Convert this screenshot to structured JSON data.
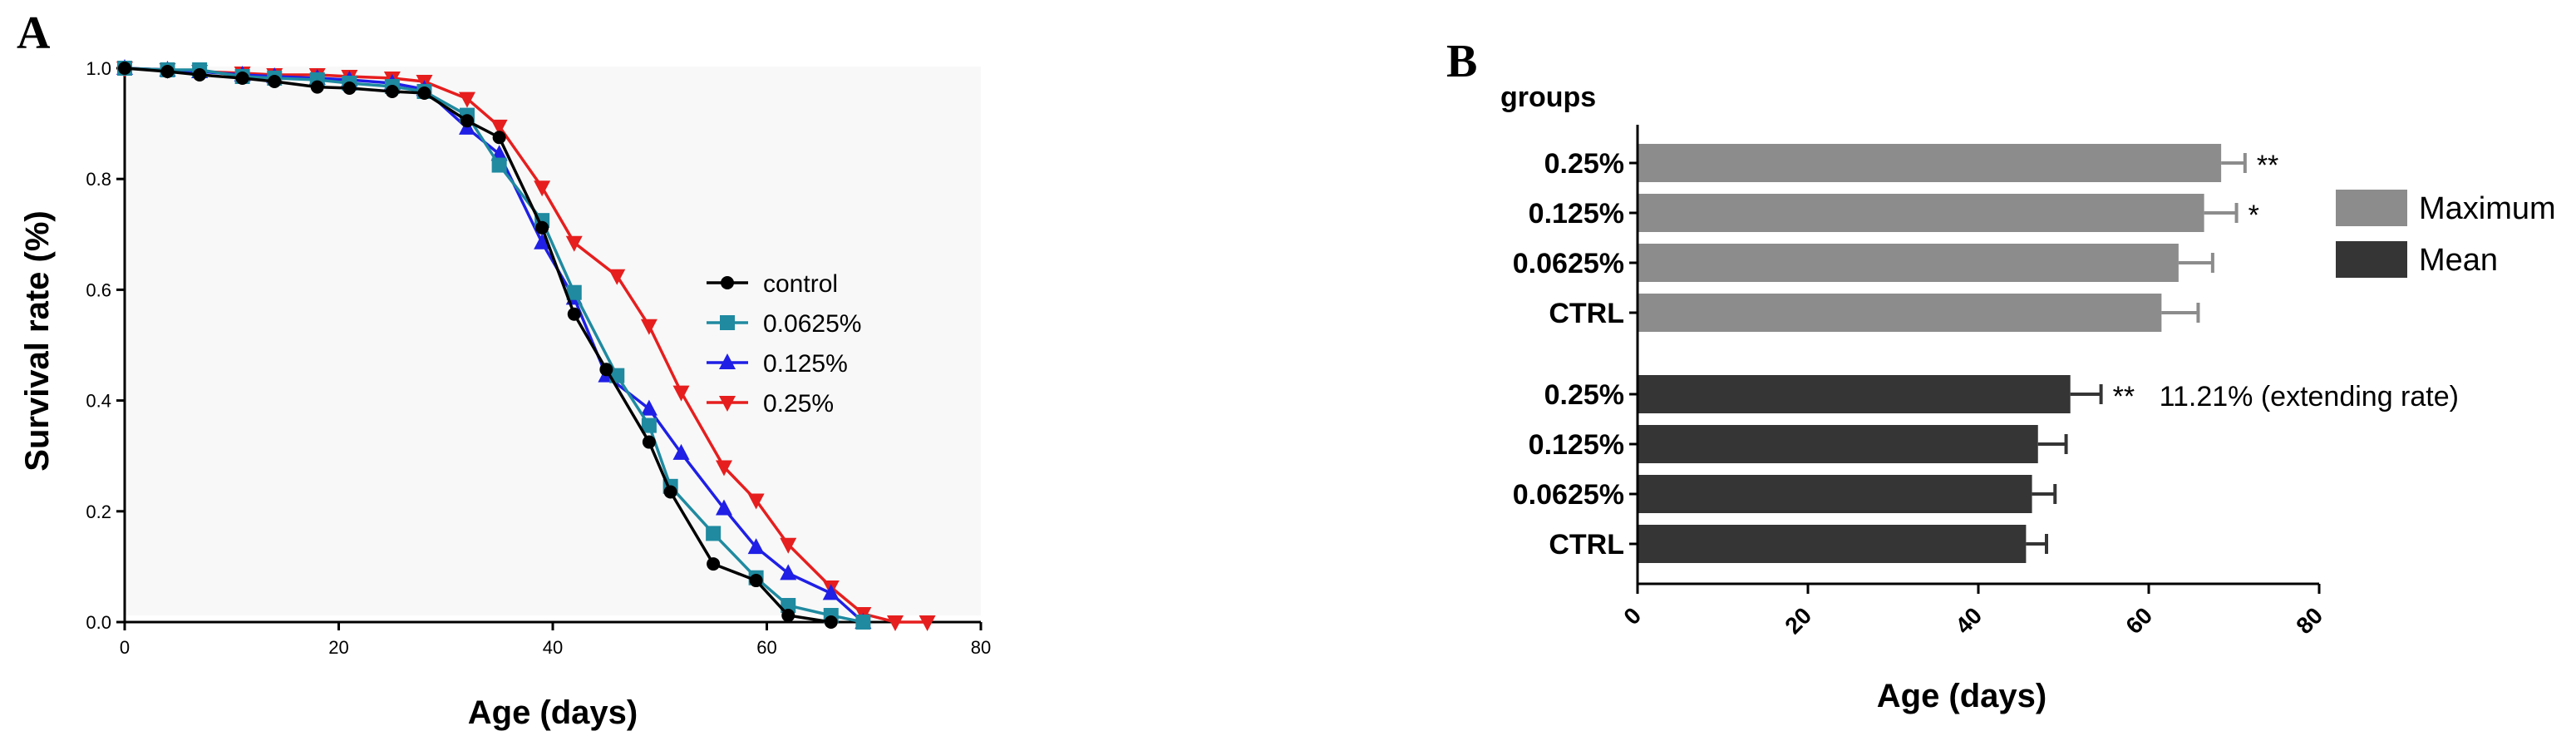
{
  "chart_data": [
    {
      "panel": "A",
      "type": "line",
      "xlabel": "Age (days)",
      "ylabel": "Survival rate (%)",
      "xlim": [
        0,
        80
      ],
      "ylim": [
        0,
        1.0
      ],
      "xticks": [
        "0",
        "20",
        "40",
        "60",
        "80"
      ],
      "yticks": [
        "0.0",
        "0.2",
        "0.4",
        "0.6",
        "0.8",
        "1.0"
      ],
      "legend_position": "right",
      "series": [
        {
          "name": "control",
          "color": "#000000",
          "marker": "circle",
          "x": [
            0,
            4,
            7,
            11,
            14,
            18,
            21,
            25,
            28,
            32,
            35,
            39,
            42,
            45,
            49,
            51,
            55,
            59,
            62,
            66
          ],
          "y": [
            1.0,
            0.994,
            0.988,
            0.982,
            0.976,
            0.966,
            0.964,
            0.958,
            0.955,
            0.905,
            0.875,
            0.712,
            0.556,
            0.456,
            0.325,
            0.235,
            0.105,
            0.075,
            0.012,
            0.0
          ]
        },
        {
          "name": "0.0625%",
          "color": "#1f8aa0",
          "marker": "square",
          "x": [
            0,
            4,
            7,
            11,
            14,
            18,
            21,
            25,
            28,
            32,
            35,
            39,
            42,
            46,
            49,
            51,
            55,
            59,
            62,
            66,
            69
          ],
          "y": [
            1.0,
            0.997,
            0.997,
            0.985,
            0.982,
            0.979,
            0.973,
            0.967,
            0.958,
            0.915,
            0.825,
            0.725,
            0.595,
            0.445,
            0.355,
            0.245,
            0.16,
            0.08,
            0.03,
            0.012,
            0.0
          ]
        },
        {
          "name": "0.125%",
          "color": "#1f1fe6",
          "marker": "triangle-up",
          "x": [
            0,
            4,
            7,
            11,
            14,
            18,
            21,
            25,
            28,
            32,
            35,
            39,
            42,
            45,
            49,
            52,
            56,
            59,
            62,
            66,
            69
          ],
          "y": [
            1.0,
            0.997,
            0.994,
            0.988,
            0.985,
            0.982,
            0.979,
            0.973,
            0.962,
            0.892,
            0.845,
            0.685,
            0.585,
            0.445,
            0.385,
            0.305,
            0.205,
            0.135,
            0.088,
            0.052,
            0.0
          ]
        },
        {
          "name": "0.25%",
          "color": "#e61e1e",
          "marker": "triangle-down",
          "x": [
            0,
            4,
            7,
            11,
            14,
            18,
            21,
            25,
            28,
            32,
            35,
            39,
            42,
            46,
            49,
            52,
            56,
            59,
            62,
            66,
            69,
            72,
            75
          ],
          "y": [
            1.0,
            0.997,
            0.994,
            0.991,
            0.988,
            0.988,
            0.985,
            0.982,
            0.976,
            0.945,
            0.895,
            0.785,
            0.685,
            0.625,
            0.535,
            0.415,
            0.28,
            0.22,
            0.14,
            0.063,
            0.015,
            0.0,
            0.0
          ]
        }
      ]
    },
    {
      "panel": "B",
      "type": "bar",
      "orientation": "horizontal",
      "xlabel": "Age (days)",
      "ylabel": "groups",
      "xlim": [
        0,
        80
      ],
      "xticks": [
        "0",
        "20",
        "40",
        "60",
        "80"
      ],
      "legend_position": "right",
      "legend": [
        {
          "label": "Maximum",
          "color": "#8c8c8c"
        },
        {
          "label": "Mean",
          "color": "#353535"
        }
      ],
      "groups": [
        {
          "name": "Maximum",
          "color": "#8c8c8c",
          "categories": [
            "0.25%",
            "0.125%",
            "0.0625%",
            "CTRL"
          ],
          "values": [
            68.5,
            66.5,
            63.5,
            61.5
          ],
          "errors": [
            2.8,
            3.8,
            4.0,
            4.3
          ],
          "annotations": [
            "**",
            "*",
            "",
            ""
          ]
        },
        {
          "name": "Mean",
          "color": "#353535",
          "categories": [
            "0.25%",
            "0.125%",
            "0.0625%",
            "CTRL"
          ],
          "values": [
            50.8,
            47.0,
            46.3,
            45.6
          ],
          "errors": [
            3.6,
            3.3,
            2.7,
            2.4
          ],
          "annotations": [
            "**",
            "",
            "",
            ""
          ]
        }
      ],
      "note": "11.21% (extending rate)"
    }
  ]
}
